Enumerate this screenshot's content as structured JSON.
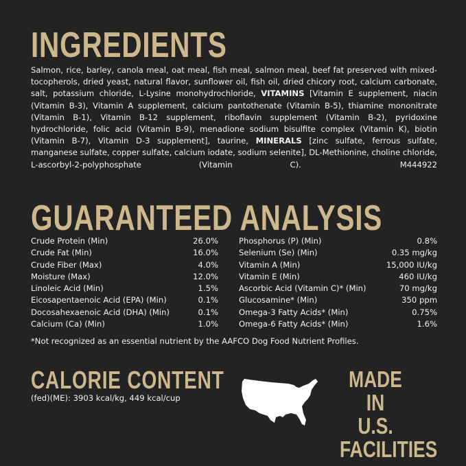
{
  "ingredients": {
    "title": "INGREDIENTS",
    "text_1": "Salmon, rice, barley, canola meal, oat meal, fish meal, salmon meal, beef fat preserved with mixed-tocopherols, dried yeast, natural flavor, sunflower oil, fish oil, dried chicory root, calcium carbonate, salt, potassium chloride, L-Lysine monohydrochloride, ",
    "vitamins_label": "VITAMINS",
    "text_2": " [Vitamin E supplement, niacin (Vitamin B-3), Vitamin A supplement, calcium pantothenate (Vitamin B-5), thiamine mononitrate (Vitamin B-1), Vitamin B-12 supplement, riboflavin supplement (Vitamin B-2), pyridoxine hydrochloride, folic acid (Vitamin B-9), menadione sodium bisulfite complex (Vitamin K), biotin (Vitamin B-7), Vitamin D-3 supplement], taurine, ",
    "minerals_label": "MINERALS",
    "text_3": " [zinc sulfate, ferrous sulfate, manganese sulfate, copper sulfate, calcium iodate, sodium selenite], DL-Methionine, choline chloride, L-ascorbyl-2-polyphosphate (Vitamin C).",
    "code": "M444922"
  },
  "analysis": {
    "title": "GUARANTEED ANALYSIS",
    "left": [
      {
        "name": "Crude Protein (Min)",
        "value": "26.0%"
      },
      {
        "name": "Crude Fat (Min)",
        "value": "16.0%"
      },
      {
        "name": "Crude Fiber (Max)",
        "value": "4.0%"
      },
      {
        "name": "Moisture (Max)",
        "value": "12.0%"
      },
      {
        "name": "Linoleic Acid (Min)",
        "value": "1.5%"
      },
      {
        "name": "Eicosapentaenoic Acid (EPA) (Min)",
        "value": "0.1%"
      },
      {
        "name": "Docosahexaenoic Acid (DHA) (Min)",
        "value": "0.1%"
      },
      {
        "name": "Calcium (Ca) (Min)",
        "value": "1.0%"
      }
    ],
    "right": [
      {
        "name": "Phosphorus (P) (Min)",
        "value": "0.8%"
      },
      {
        "name": "Selenium (Se) (Min)",
        "value": "0.35 mg/kg"
      },
      {
        "name": "Vitamin A (Min)",
        "value": "15,000 IU/kg"
      },
      {
        "name": "Vitamin E (Min)",
        "value": "460 IU/kg"
      },
      {
        "name": "Ascorbic Acid (Vitamin C)* (Min)",
        "value": "70 mg/kg"
      },
      {
        "name": "Glucosamine* (Min)",
        "value": "350 ppm"
      },
      {
        "name": "Omega-3 Fatty Acids* (Min)",
        "value": "0.75%"
      },
      {
        "name": "Omega-6 Fatty Acids* (Min)",
        "value": "1.6%"
      }
    ],
    "footnote": "*Not recognized as an essential nutrient by the AAFCO Dog Food Nutrient Profiles."
  },
  "calorie": {
    "title": "CALORIE CONTENT",
    "text": "(fed)(ME): 3903 kcal/kg, 449 kcal/cup"
  },
  "made_in": {
    "line1": "MADE IN",
    "line2": "U.S.",
    "line3": "FACILITIES",
    "icon": "usa-map-icon"
  },
  "colors": {
    "background": "#232323",
    "accent": "#cdb88d",
    "text": "#f2f2f2"
  }
}
